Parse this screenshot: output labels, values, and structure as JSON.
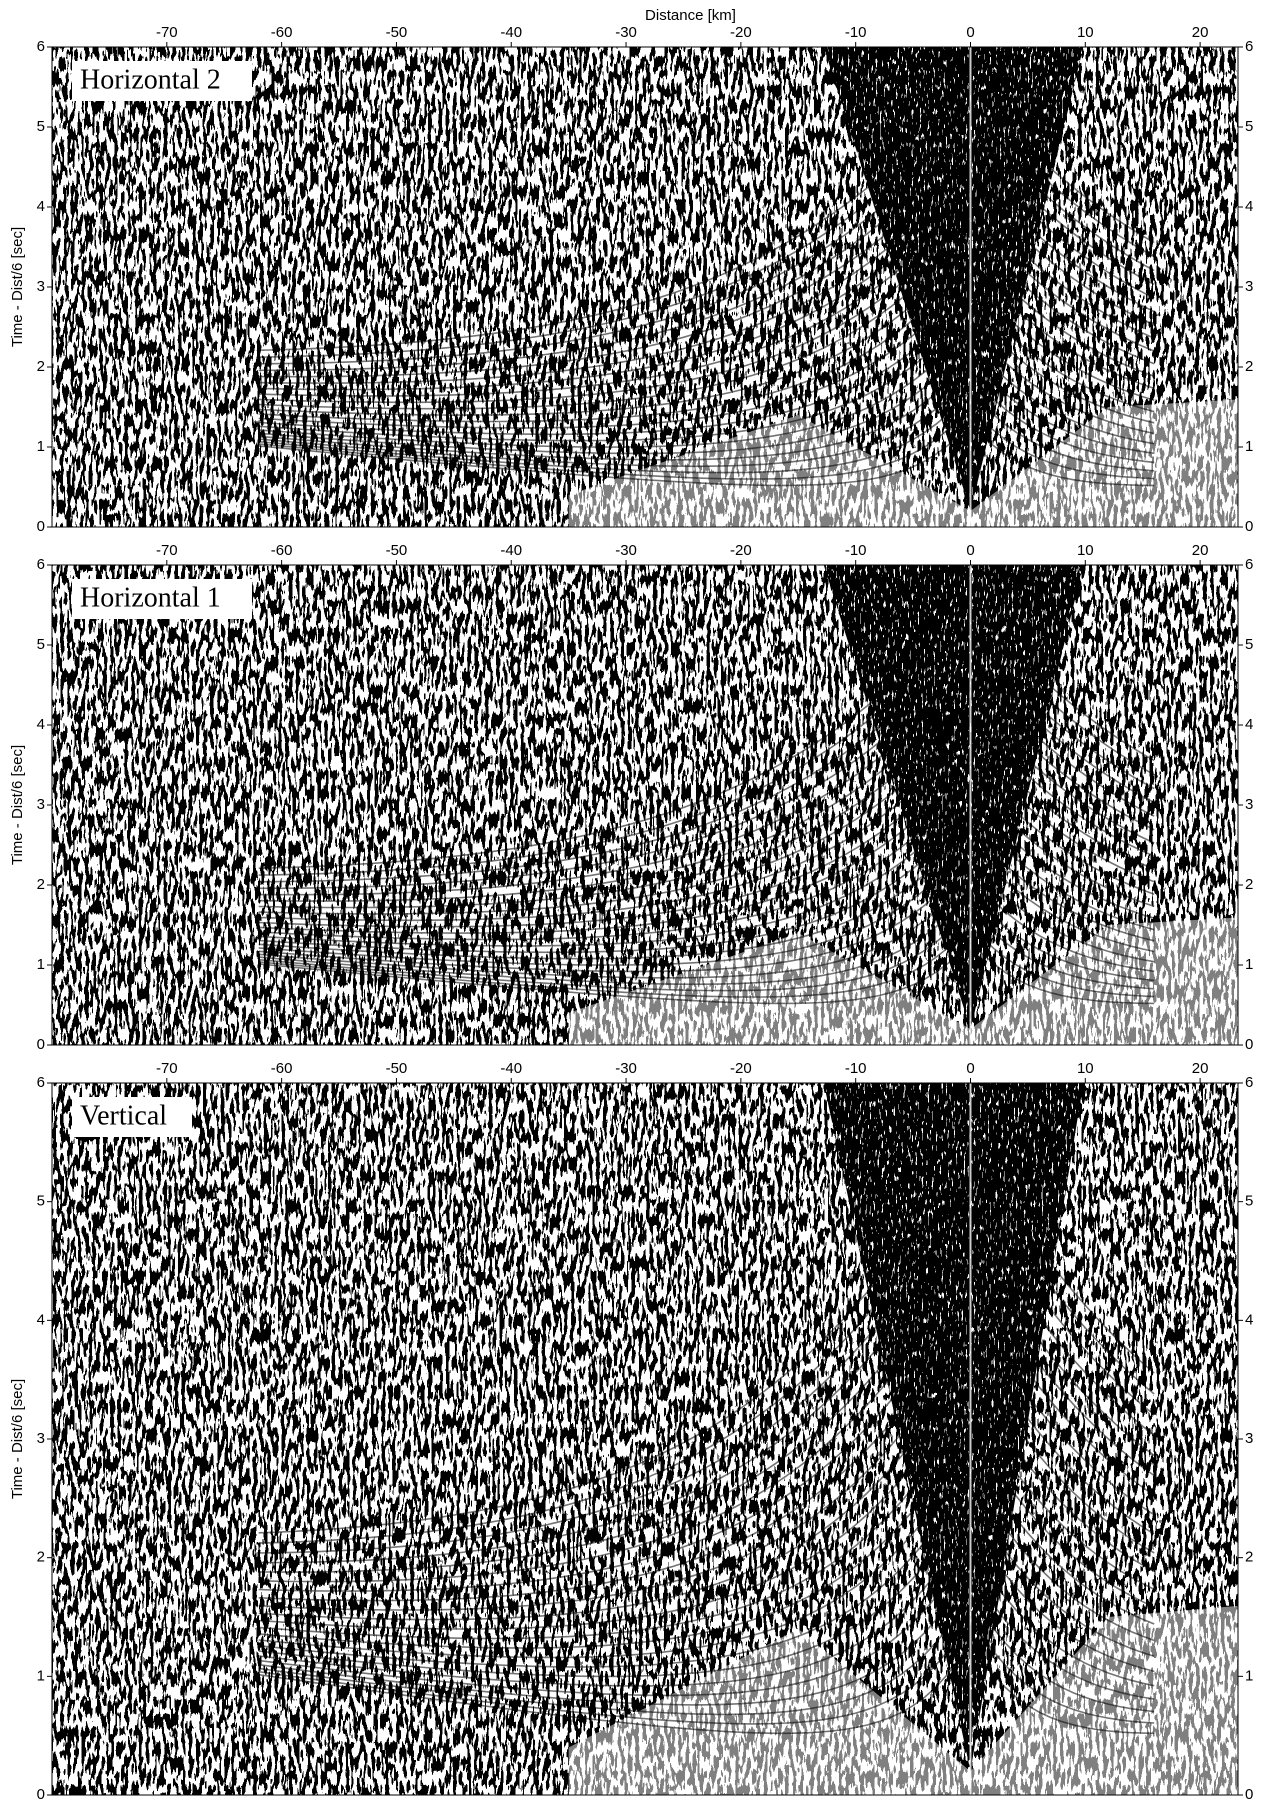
{
  "chart_data": [
    {
      "type": "seismic-section",
      "xlabel": "Distance [km]",
      "panel_label": "Horizontal 2",
      "ylabel": "Time - Dist/6 [sec]",
      "xlim": [
        -80,
        23.3
      ],
      "xticks": [
        -70,
        -60,
        -50,
        -40,
        -30,
        -20,
        -10,
        0,
        10,
        20
      ],
      "ylim": [
        0,
        6
      ],
      "yticks": [
        0,
        1,
        2,
        3,
        4,
        5,
        6
      ]
    },
    {
      "type": "seismic-section",
      "panel_label": "Horizontal 1",
      "ylabel": "Time - Dist/6 [sec]",
      "xlim": [
        -80,
        23.3
      ],
      "xticks": [
        -70,
        -60,
        -50,
        -40,
        -30,
        -20,
        -10,
        0,
        10,
        20
      ],
      "ylim": [
        0,
        6
      ],
      "yticks": [
        0,
        1,
        2,
        3,
        4,
        5,
        6
      ]
    },
    {
      "type": "seismic-section",
      "panel_label": "Vertical",
      "ylabel": "Time - Dist/6 [sec]",
      "xlim": [
        -80,
        23.3
      ],
      "xticks": [
        -70,
        -60,
        -50,
        -40,
        -30,
        -20,
        -10,
        0,
        10,
        20
      ],
      "ylim": [
        0,
        6
      ],
      "yticks": [
        0,
        1,
        2,
        3,
        4,
        5,
        6
      ]
    }
  ]
}
